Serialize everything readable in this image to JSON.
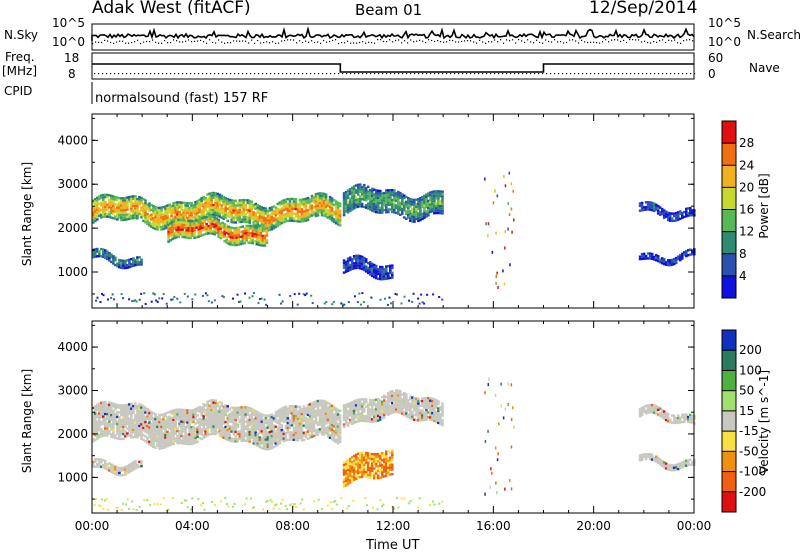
{
  "header": {
    "station": "Adak West (fitACF)",
    "beam": "Beam 01",
    "date": "12/Sep/2014"
  },
  "panels": {
    "nsky_label": "N.Sky",
    "nsearch_label": "N.Search",
    "freq_label_top": "Freq.",
    "freq_label_bottom": "[MHz]",
    "nave_label": "Nave",
    "cpid_label": "CPID",
    "cpid_text": "normalsound (fast) 157 RF",
    "noise_ticks": [
      "10^5",
      "10^0"
    ],
    "freq_ticks": [
      "18",
      "8"
    ],
    "nave_ticks": [
      "60",
      "0"
    ]
  },
  "chart_data": [
    {
      "type": "heatmap",
      "title": "",
      "xlabel": "Time UT",
      "ylabel": "Slant Range [km]",
      "colorbar_label": "Power [dB]",
      "x_ticks": [
        "00:00",
        "04:00",
        "08:00",
        "12:00",
        "16:00",
        "20:00",
        "00:00"
      ],
      "xlim_hours": [
        0,
        24
      ],
      "y_ticks": [
        1000,
        2000,
        3000,
        4000
      ],
      "ylim_km": [
        180,
        4600
      ],
      "colorbar_ticks": [
        4,
        8,
        12,
        16,
        20,
        24,
        28
      ],
      "colorbar_range": [
        0,
        32
      ],
      "colors": [
        "#1010e0",
        "#2a50b0",
        "#2e8a70",
        "#58b858",
        "#c8d830",
        "#f0b020",
        "#f07010",
        "#e01010"
      ],
      "echo_bands": [
        {
          "t_start": 0.0,
          "t_end": 9.9,
          "km_start": 2100,
          "km_end": 2600,
          "power_db": 24
        },
        {
          "t_start": 3.0,
          "t_end": 7.0,
          "km_start": 1700,
          "km_end": 2100,
          "power_db": 28
        },
        {
          "t_start": 0.0,
          "t_end": 2.0,
          "km_start": 1200,
          "km_end": 1400,
          "power_db": 8
        },
        {
          "t_start": 10.0,
          "t_end": 14.0,
          "km_start": 2300,
          "km_end": 2800,
          "power_db": 14
        },
        {
          "t_start": 10.0,
          "t_end": 12.0,
          "km_start": 900,
          "km_end": 1200,
          "power_db": 6
        },
        {
          "t_start": 21.8,
          "t_end": 24.0,
          "km_start": 2300,
          "km_end": 2500,
          "power_db": 6
        },
        {
          "t_start": 21.8,
          "t_end": 24.0,
          "km_start": 1300,
          "km_end": 1450,
          "power_db": 6
        }
      ]
    },
    {
      "type": "heatmap",
      "title": "",
      "xlabel": "Time UT",
      "ylabel": "Slant Range [km]",
      "colorbar_label": "Velocity [m s^-1]",
      "x_ticks": [
        "00:00",
        "04:00",
        "08:00",
        "12:00",
        "16:00",
        "20:00",
        "00:00"
      ],
      "xlim_hours": [
        0,
        24
      ],
      "y_ticks": [
        1000,
        2000,
        3000,
        4000
      ],
      "ylim_km": [
        180,
        4600
      ],
      "colorbar_ticks": [
        "200",
        "100",
        "50",
        "15",
        "-15",
        "-50",
        "-100",
        "-200"
      ],
      "colorbar_range": [
        -250,
        250
      ],
      "colors": [
        "#1030c0",
        "#2e7a60",
        "#50b040",
        "#a0e070",
        "#c8c8c0",
        "#f8e040",
        "#f09010",
        "#f06010",
        "#e01010"
      ],
      "echo_bands": [
        {
          "t_start": 0.0,
          "t_end": 9.9,
          "km_start": 1800,
          "km_end": 2600,
          "velocity": 0
        },
        {
          "t_start": 10.0,
          "t_end": 14.0,
          "km_start": 2300,
          "km_end": 2800,
          "velocity": 0
        },
        {
          "t_start": 10.0,
          "t_end": 12.0,
          "km_start": 900,
          "km_end": 1500,
          "velocity": -60
        },
        {
          "t_start": 0.0,
          "t_end": 2.0,
          "km_start": 1200,
          "km_end": 1400,
          "velocity": 0
        },
        {
          "t_start": 21.8,
          "t_end": 24.0,
          "km_start": 2300,
          "km_end": 2500,
          "velocity": 0
        },
        {
          "t_start": 21.8,
          "t_end": 24.0,
          "km_start": 1300,
          "km_end": 1450,
          "velocity": 0
        }
      ]
    }
  ]
}
